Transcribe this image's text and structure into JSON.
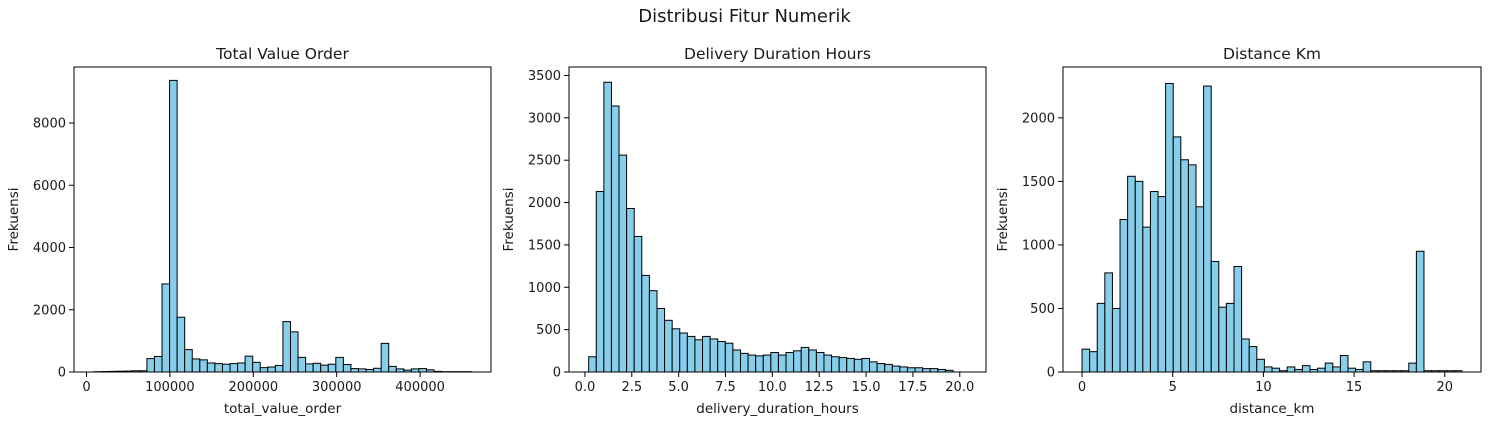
{
  "figure": {
    "suptitle": "Distribusi Fitur Numerik"
  },
  "colors": {
    "bar_fill": "#87CEEB",
    "bar_edge": "#000000",
    "axes": "#000000"
  },
  "chart_data": [
    {
      "type": "bar",
      "title": "Total Value Order",
      "xlabel": "total_value_order",
      "ylabel": "Frekuensi",
      "xlim": [
        -15000,
        485000
      ],
      "ylim": [
        0,
        9800
      ],
      "xticks": [
        0,
        100000,
        200000,
        300000,
        400000
      ],
      "xtick_labels": [
        "0",
        "100000",
        "200000",
        "300000",
        "400000"
      ],
      "yticks": [
        0,
        2000,
        4000,
        6000,
        8000
      ],
      "ytick_labels": [
        "0",
        "2000",
        "4000",
        "6000",
        "8000"
      ],
      "bin_start": 9000,
      "bin_width": 9060,
      "values": [
        10,
        15,
        20,
        25,
        30,
        40,
        40,
        430,
        500,
        2830,
        9370,
        1760,
        720,
        420,
        390,
        290,
        270,
        250,
        270,
        290,
        510,
        310,
        140,
        160,
        210,
        1620,
        1290,
        470,
        260,
        280,
        220,
        250,
        470,
        240,
        110,
        100,
        80,
        120,
        920,
        180,
        100,
        60,
        100,
        110,
        70,
        20,
        10,
        10,
        10,
        10
      ]
    },
    {
      "type": "bar",
      "title": "Delivery Duration Hours",
      "xlabel": "delivery_duration_hours",
      "ylabel": "Frekuensi",
      "xlim": [
        -0.85,
        21.4
      ],
      "ylim": [
        0,
        3600
      ],
      "xticks": [
        0.0,
        2.5,
        5.0,
        7.5,
        10.0,
        12.5,
        15.0,
        17.5,
        20.0
      ],
      "xtick_labels": [
        "0.0",
        "2.5",
        "5.0",
        "7.5",
        "10.0",
        "12.5",
        "15.0",
        "17.5",
        "20.0"
      ],
      "yticks": [
        0,
        500,
        1000,
        1500,
        2000,
        2500,
        3000,
        3500
      ],
      "ytick_labels": [
        "0",
        "500",
        "1000",
        "1500",
        "2000",
        "2500",
        "3000",
        "3500"
      ],
      "bin_start": 0.2,
      "bin_width": 0.405,
      "values": [
        180,
        2130,
        3420,
        3140,
        2560,
        1930,
        1600,
        1140,
        960,
        750,
        610,
        510,
        460,
        420,
        380,
        420,
        390,
        360,
        340,
        260,
        220,
        200,
        190,
        200,
        230,
        200,
        230,
        250,
        290,
        260,
        230,
        200,
        180,
        170,
        160,
        150,
        160,
        120,
        100,
        90,
        70,
        60,
        50,
        50,
        40,
        40,
        30,
        20
      ]
    },
    {
      "type": "bar",
      "title": "Distance Km",
      "xlabel": "distance_km",
      "ylabel": "Frekuensi",
      "xlim": [
        -1.05,
        22.0
      ],
      "ylim": [
        0,
        2400
      ],
      "xticks": [
        0,
        5,
        10,
        15,
        20
      ],
      "xtick_labels": [
        "0",
        "5",
        "10",
        "15",
        "20"
      ],
      "yticks": [
        0,
        500,
        1000,
        1500,
        2000
      ],
      "ytick_labels": [
        "0",
        "500",
        "1000",
        "1500",
        "2000"
      ],
      "bin_start": 0.0,
      "bin_width": 0.419,
      "values": [
        180,
        160,
        540,
        780,
        500,
        1200,
        1540,
        1500,
        1140,
        1420,
        1380,
        2270,
        1850,
        1670,
        1630,
        1300,
        2250,
        870,
        510,
        540,
        830,
        260,
        200,
        100,
        40,
        30,
        10,
        40,
        20,
        50,
        20,
        30,
        70,
        40,
        130,
        30,
        20,
        80,
        10,
        10,
        10,
        10,
        10,
        70,
        950,
        10,
        10,
        10,
        10,
        10
      ]
    }
  ]
}
